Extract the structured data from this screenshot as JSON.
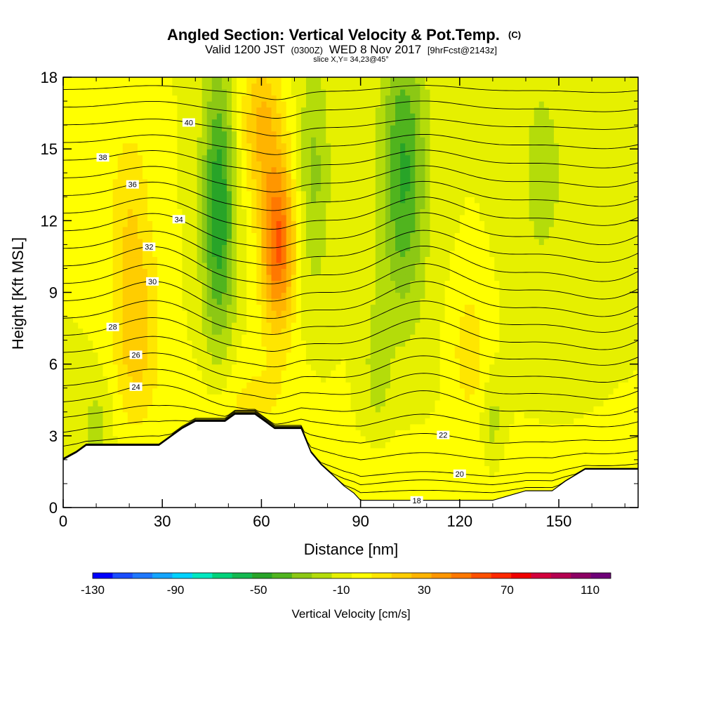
{
  "chart_data": {
    "type": "heatmap",
    "title": "Angled Section: Vertical Velocity & Pot.Temp.",
    "title_unit": "(C)",
    "subtitle_main": "Valid 1200 JST",
    "subtitle_utc": "(0300Z)",
    "subtitle_date": "WED 8 Nov 2017",
    "subtitle_fcst": "[9hrFcst@2143z]",
    "slice_label": "slice X,Y= 34,23@45°",
    "xlabel": "Distance [nm]",
    "ylabel": "Height [Kft MSL]",
    "xlim": [
      0,
      174
    ],
    "ylim": [
      0,
      18
    ],
    "x_ticks": [
      "0",
      "30",
      "60",
      "90",
      "120",
      "150"
    ],
    "x_tick_values": [
      0,
      30,
      60,
      90,
      120,
      150
    ],
    "y_ticks": [
      "0",
      "3",
      "6",
      "9",
      "12",
      "15",
      "18"
    ],
    "y_tick_values": [
      0,
      3,
      6,
      9,
      12,
      15,
      18
    ],
    "colorbar": {
      "label": "Vertical Velocity [cm/s]",
      "min": -130,
      "max": 120,
      "step": 10,
      "tick_labels": [
        "-130",
        "-90",
        "-50",
        "-10",
        "30",
        "70",
        "110"
      ],
      "tick_values": [
        -130,
        -90,
        -50,
        -10,
        30,
        70,
        110
      ],
      "colors": [
        "#0000ff",
        "#1a4dff",
        "#1e78ff",
        "#14a5ff",
        "#00d2ff",
        "#00e8c0",
        "#00d27a",
        "#14b850",
        "#28a428",
        "#50b41e",
        "#8cc814",
        "#b4dc0a",
        "#e6f000",
        "#ffff00",
        "#ffe600",
        "#ffcd00",
        "#ffb400",
        "#ff9600",
        "#ff7800",
        "#ff5000",
        "#ff2800",
        "#f00000",
        "#d2003c",
        "#b40050",
        "#8c0064",
        "#6e0078"
      ]
    },
    "velocity_features": [
      {
        "x": 22,
        "z": 7.5,
        "sx": 7,
        "sz": 4,
        "w": 28
      },
      {
        "x": 20,
        "z": 13,
        "sx": 6,
        "sz": 3.5,
        "w": 15
      },
      {
        "x": 47,
        "z": 12.5,
        "sx": 5,
        "sz": 6,
        "w": -48
      },
      {
        "x": 65,
        "z": 11,
        "sx": 5,
        "sz": 3.5,
        "w": 62
      },
      {
        "x": 60,
        "z": 16,
        "sx": 6,
        "sz": 3,
        "w": 32
      },
      {
        "x": 76,
        "z": 14,
        "sx": 5,
        "sz": 5,
        "w": -22
      },
      {
        "x": 103,
        "z": 14,
        "sx": 7,
        "sz": 6,
        "w": -42
      },
      {
        "x": 123,
        "z": 6.5,
        "sx": 5,
        "sz": 2.5,
        "w": 18
      },
      {
        "x": 145,
        "z": 14,
        "sx": 8,
        "sz": 5,
        "w": -14
      },
      {
        "x": 55,
        "z": 4.5,
        "sx": 15,
        "sz": 2,
        "w": 12
      },
      {
        "x": 10,
        "z": 3.5,
        "sx": 5,
        "sz": 2,
        "w": -14
      },
      {
        "x": 95,
        "z": 6,
        "sx": 4,
        "sz": 3,
        "w": -15
      },
      {
        "x": 130,
        "z": 3.5,
        "sx": 3,
        "sz": 2,
        "w": -14
      },
      {
        "x": 110,
        "z": 1.5,
        "sx": 25,
        "sz": 1.5,
        "w": 8
      }
    ],
    "terrain": [
      [
        0,
        2
      ],
      [
        4,
        2.3
      ],
      [
        7,
        2.6
      ],
      [
        29,
        2.6
      ],
      [
        32,
        2.9
      ],
      [
        36,
        3.3
      ],
      [
        40,
        3.6
      ],
      [
        49,
        3.6
      ],
      [
        52,
        3.9
      ],
      [
        58,
        3.9
      ],
      [
        61,
        3.6
      ],
      [
        64,
        3.3
      ],
      [
        72,
        3.3
      ],
      [
        75,
        2.3
      ],
      [
        78,
        1.8
      ],
      [
        82,
        1.3
      ],
      [
        85,
        0.9
      ],
      [
        88,
        0.6
      ],
      [
        90,
        0.3
      ],
      [
        130,
        0.3
      ],
      [
        140,
        0.7
      ],
      [
        148,
        0.7
      ],
      [
        152,
        1.1
      ],
      [
        158,
        1.6
      ],
      [
        164,
        1.6
      ],
      [
        174,
        1.6
      ]
    ],
    "pot_temp_contours": [
      {
        "base": 18,
        "amp": 0,
        "label": "18",
        "label_x": 107
      },
      {
        "base": 18.5,
        "amp": 0,
        "label": "",
        "label_x": 0
      },
      {
        "base": 19.0,
        "amp": 0.1,
        "label": "",
        "label_x": 0
      },
      {
        "base": 19.5,
        "amp": 0.2,
        "label": "",
        "label_x": 0
      },
      {
        "base": 20,
        "amp": 0.2,
        "label": "20",
        "label_x": 120
      },
      {
        "base": 21,
        "amp": 0.3,
        "label": "",
        "label_x": 0
      },
      {
        "base": 22,
        "amp": 0.4,
        "label": "22",
        "label_x": 115
      },
      {
        "base": 23,
        "amp": 0.5,
        "label": "",
        "label_x": 0
      },
      {
        "base": 24,
        "amp": 0.8,
        "label": "24",
        "label_x": 22
      },
      {
        "base": 25,
        "amp": 0.8,
        "label": "",
        "label_x": 0
      },
      {
        "base": 26,
        "amp": 0.8,
        "label": "26",
        "label_x": 22
      },
      {
        "base": 27,
        "amp": 0.8,
        "label": "",
        "label_x": 0
      },
      {
        "base": 28,
        "amp": 0.9,
        "label": "28",
        "label_x": 15
      },
      {
        "base": 29,
        "amp": 0.9,
        "label": "",
        "label_x": 0
      },
      {
        "base": 30,
        "amp": 1.0,
        "label": "30",
        "label_x": 27
      },
      {
        "base": 31,
        "amp": 1.0,
        "label": "",
        "label_x": 0
      },
      {
        "base": 32,
        "amp": 1.0,
        "label": "32",
        "label_x": 26
      },
      {
        "base": 33,
        "amp": 0.9,
        "label": "",
        "label_x": 0
      },
      {
        "base": 34,
        "amp": 0.9,
        "label": "34",
        "label_x": 35
      },
      {
        "base": 35,
        "amp": 0.8,
        "label": "",
        "label_x": 0
      },
      {
        "base": 36,
        "amp": 0.7,
        "label": "36",
        "label_x": 21
      },
      {
        "base": 37,
        "amp": 0.6,
        "label": "",
        "label_x": 0
      },
      {
        "base": 38,
        "amp": 0.5,
        "label": "38",
        "label_x": 12
      },
      {
        "base": 39,
        "amp": 0.4,
        "label": "",
        "label_x": 0
      },
      {
        "base": 40,
        "amp": 0.3,
        "label": "40",
        "label_x": 38
      },
      {
        "base": 41,
        "amp": 0.3,
        "label": "",
        "label_x": 0
      },
      {
        "base": 42,
        "amp": 0.2,
        "label": "",
        "label_x": 0
      }
    ]
  }
}
